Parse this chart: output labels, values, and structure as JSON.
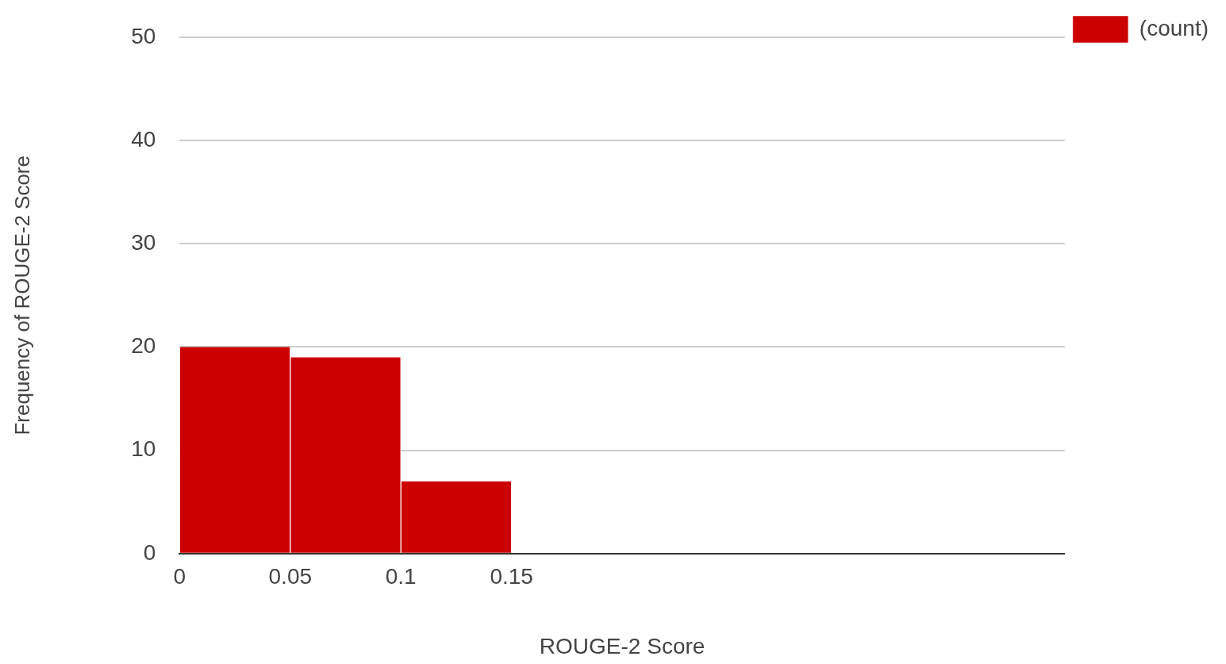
{
  "chart_data": {
    "type": "histogram",
    "xlabel": "ROUGE-2 Score",
    "ylabel": "Frequency of ROUGE-2 Score",
    "bins": [
      0,
      0.05,
      0.1,
      0.15
    ],
    "series": [
      {
        "name": "(count)",
        "color": "#cc0000",
        "values": [
          20,
          19,
          7
        ]
      }
    ],
    "xlim": [
      0,
      0.4
    ],
    "xticks": [
      0,
      0.05,
      0.1,
      0.15
    ],
    "ylim": [
      0,
      50
    ],
    "yticks": [
      0,
      10,
      20,
      30,
      40,
      50
    ],
    "grid": "y",
    "legend": "top right"
  }
}
